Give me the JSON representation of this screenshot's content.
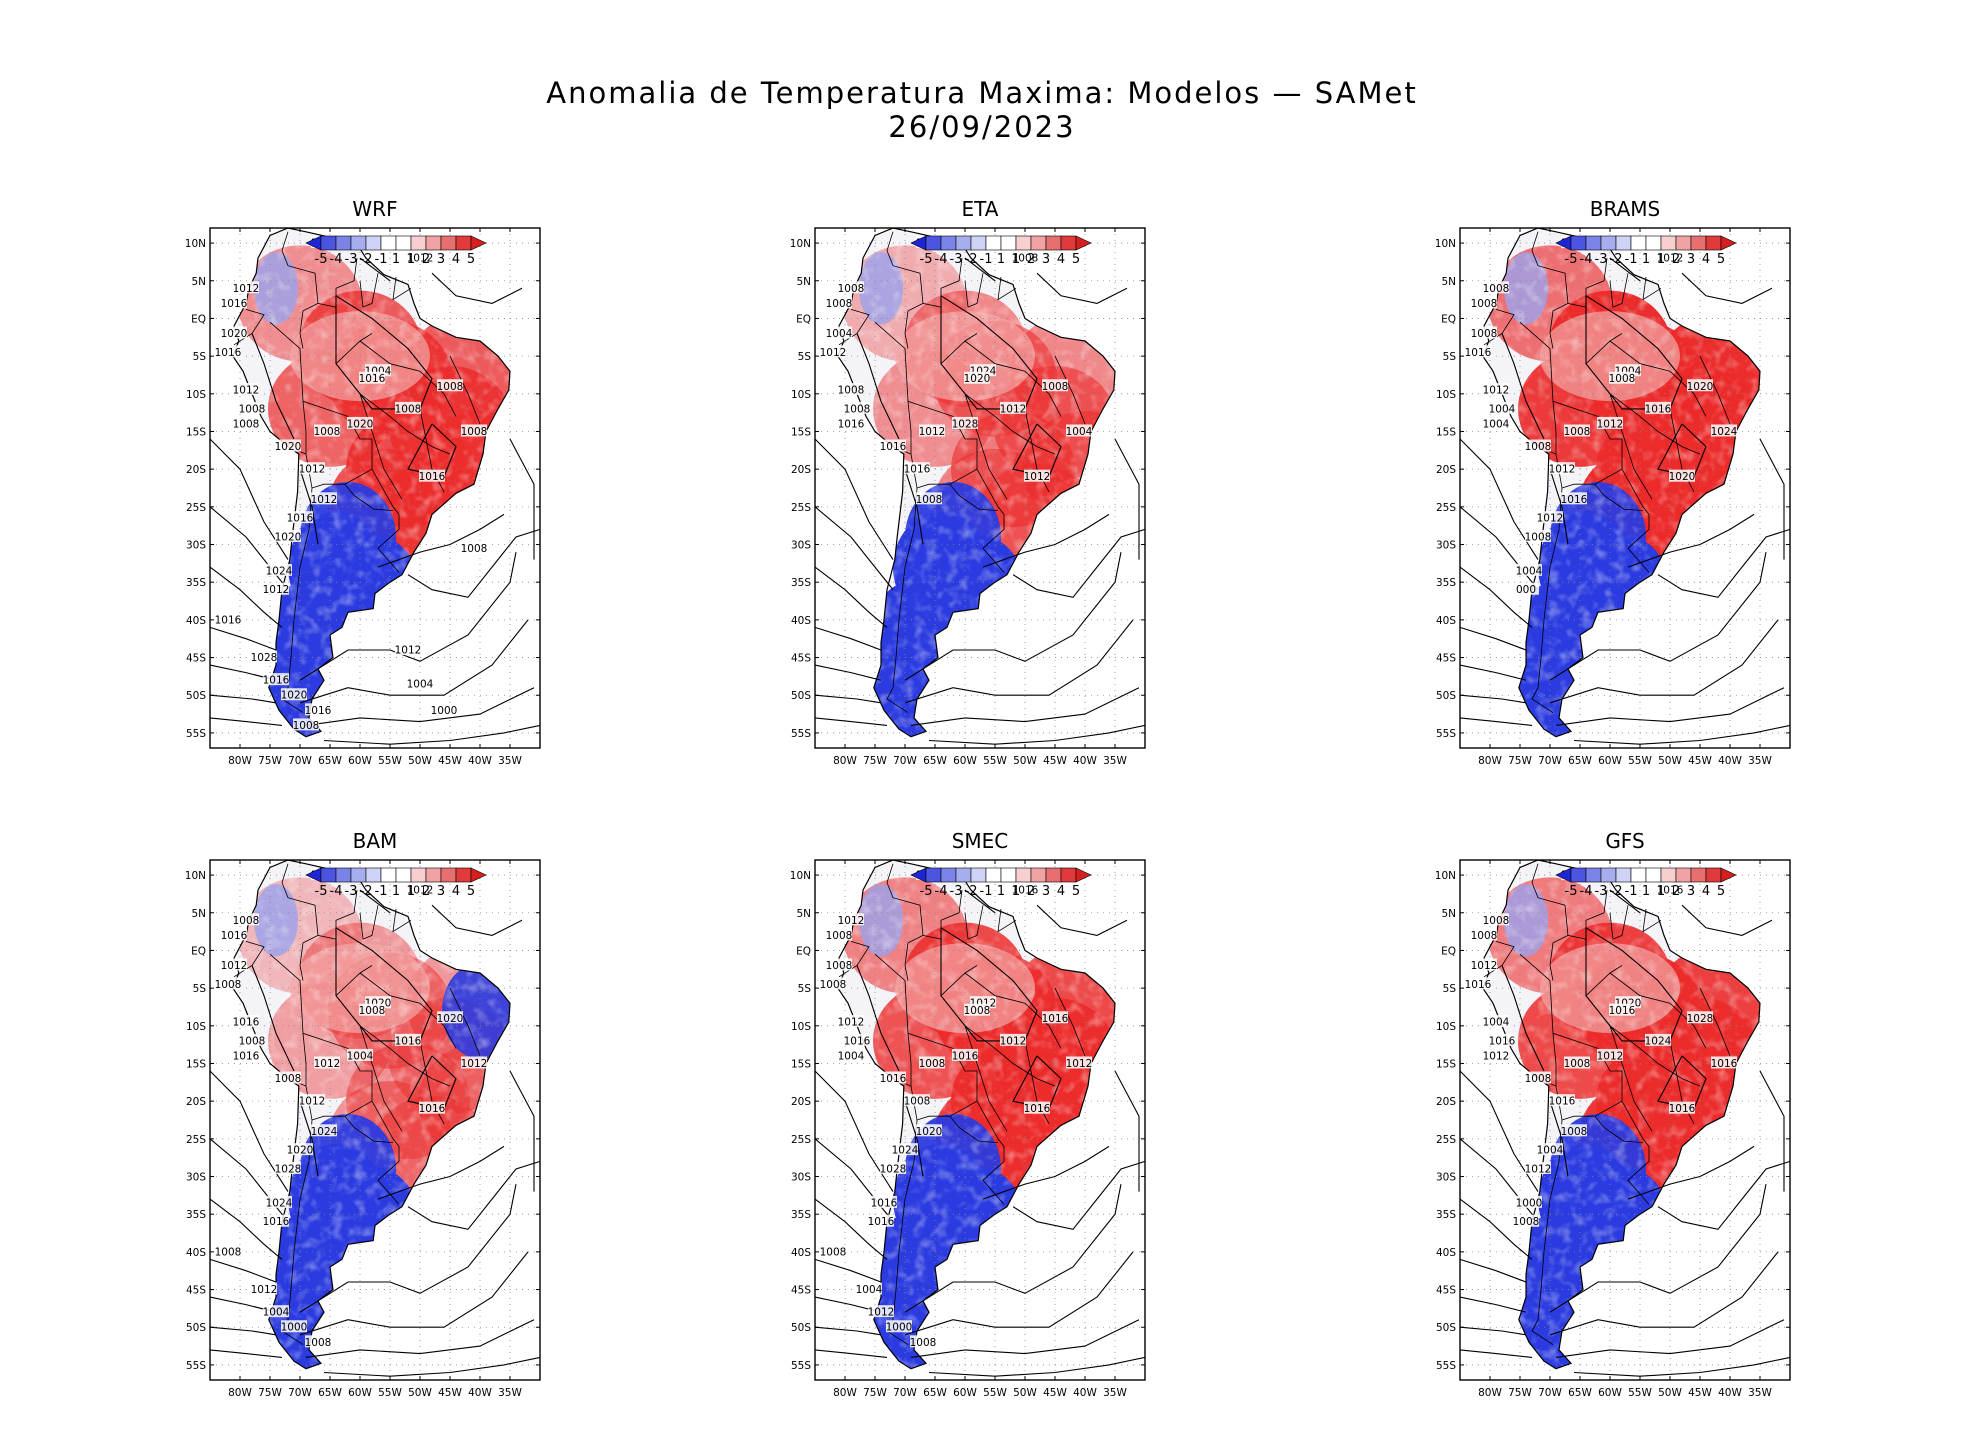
{
  "figure": {
    "title_line1": "Anomalia de Temperatura Maxima: Modelos — SAMet",
    "title_line2": "26/09/2023"
  },
  "axes": {
    "lat_labels": [
      "10N",
      "5N",
      "EQ",
      "5S",
      "10S",
      "15S",
      "20S",
      "25S",
      "30S",
      "35S",
      "40S",
      "45S",
      "50S",
      "55S"
    ],
    "lon_labels": [
      "80W",
      "75W",
      "70W",
      "65W",
      "60W",
      "55W",
      "50W",
      "45W",
      "40W",
      "35W"
    ],
    "lon_range": [
      -85,
      -30
    ],
    "lat_range": [
      -57,
      12
    ]
  },
  "colorbar": {
    "labels": [
      "-5",
      "-4",
      "-3",
      "-2",
      "-1",
      "1",
      "1",
      "2",
      "3",
      "4",
      "5"
    ],
    "colors": [
      "#1f24d6",
      "#4b55e0",
      "#7a84e8",
      "#a7aef0",
      "#cfd3f7",
      "#ffffff",
      "#ffffff",
      "#f7cfcf",
      "#f0a3a3",
      "#e86f6f",
      "#e03a3a",
      "#d61f1f"
    ]
  },
  "colors": {
    "warm": "#ec2b2b",
    "warm_light": "#f4a8a8",
    "cold": "#2b3be0",
    "cold_light": "#9aa3ee",
    "neutral": "#f3f3f8"
  },
  "panels": [
    {
      "name": "WRF",
      "contour_labels": [
        "1012",
        "1012",
        "1012",
        "1016",
        "1020",
        "1016",
        "1012",
        "1008",
        "1008",
        "1008",
        "1020",
        "1012",
        "1020",
        "1004",
        "1016",
        "1008",
        "1008",
        "1008",
        "1016",
        "1012",
        "1016",
        "1020",
        "1024",
        "1012",
        "1016",
        "1028",
        "1016",
        "1020",
        "1016",
        "1008",
        "1012",
        "1004",
        "1000",
        "1008"
      ]
    },
    {
      "name": "ETA",
      "contour_labels": [
        "1008",
        "1008",
        "1008",
        "1008",
        "1004",
        "1012",
        "1008",
        "1008",
        "1016",
        "1012",
        "1016",
        "1016",
        "1028",
        "1024",
        "1020",
        "1012",
        "1008",
        "1004",
        "1012",
        "1008"
      ]
    },
    {
      "name": "BRAMS",
      "contour_labels": [
        "1008",
        "1012",
        "1008",
        "1008",
        "1008",
        "1016",
        "1012",
        "1004",
        "1004",
        "1008",
        "1008",
        "1012",
        "1012",
        "1004",
        "1008",
        "1016",
        "1020",
        "1024",
        "1020",
        "1016",
        "1012",
        "1008",
        "1004",
        "000"
      ]
    },
    {
      "name": "BAM",
      "contour_labels": [
        "1012",
        "1012",
        "1008",
        "1016",
        "1012",
        "1008",
        "1016",
        "1008",
        "1016",
        "1012",
        "1008",
        "1012",
        "1004",
        "1020",
        "1008",
        "1016",
        "1020",
        "1012",
        "1016",
        "1024",
        "1020",
        "1028",
        "1024",
        "1016",
        "1008",
        "1012",
        "1004",
        "1000",
        "1008"
      ]
    },
    {
      "name": "SMEC",
      "contour_labels": [
        "1012",
        "1016",
        "1012",
        "1008",
        "1008",
        "1008",
        "1012",
        "1016",
        "1004",
        "1008",
        "1016",
        "1008",
        "1016",
        "1012",
        "1008",
        "1012",
        "1016",
        "1012",
        "1016",
        "1020",
        "1024",
        "1028",
        "1016",
        "1016",
        "1008",
        "1004",
        "1012",
        "1000",
        "1008"
      ]
    },
    {
      "name": "GFS",
      "contour_labels": [
        "1012",
        "1016",
        "1008",
        "1008",
        "1012",
        "1016",
        "1004",
        "1016",
        "1012",
        "1008",
        "1008",
        "1016",
        "1012",
        "1020",
        "1016",
        "1024",
        "1028",
        "1016",
        "1016",
        "1008",
        "1004",
        "1012",
        "1000",
        "1008"
      ]
    }
  ]
}
